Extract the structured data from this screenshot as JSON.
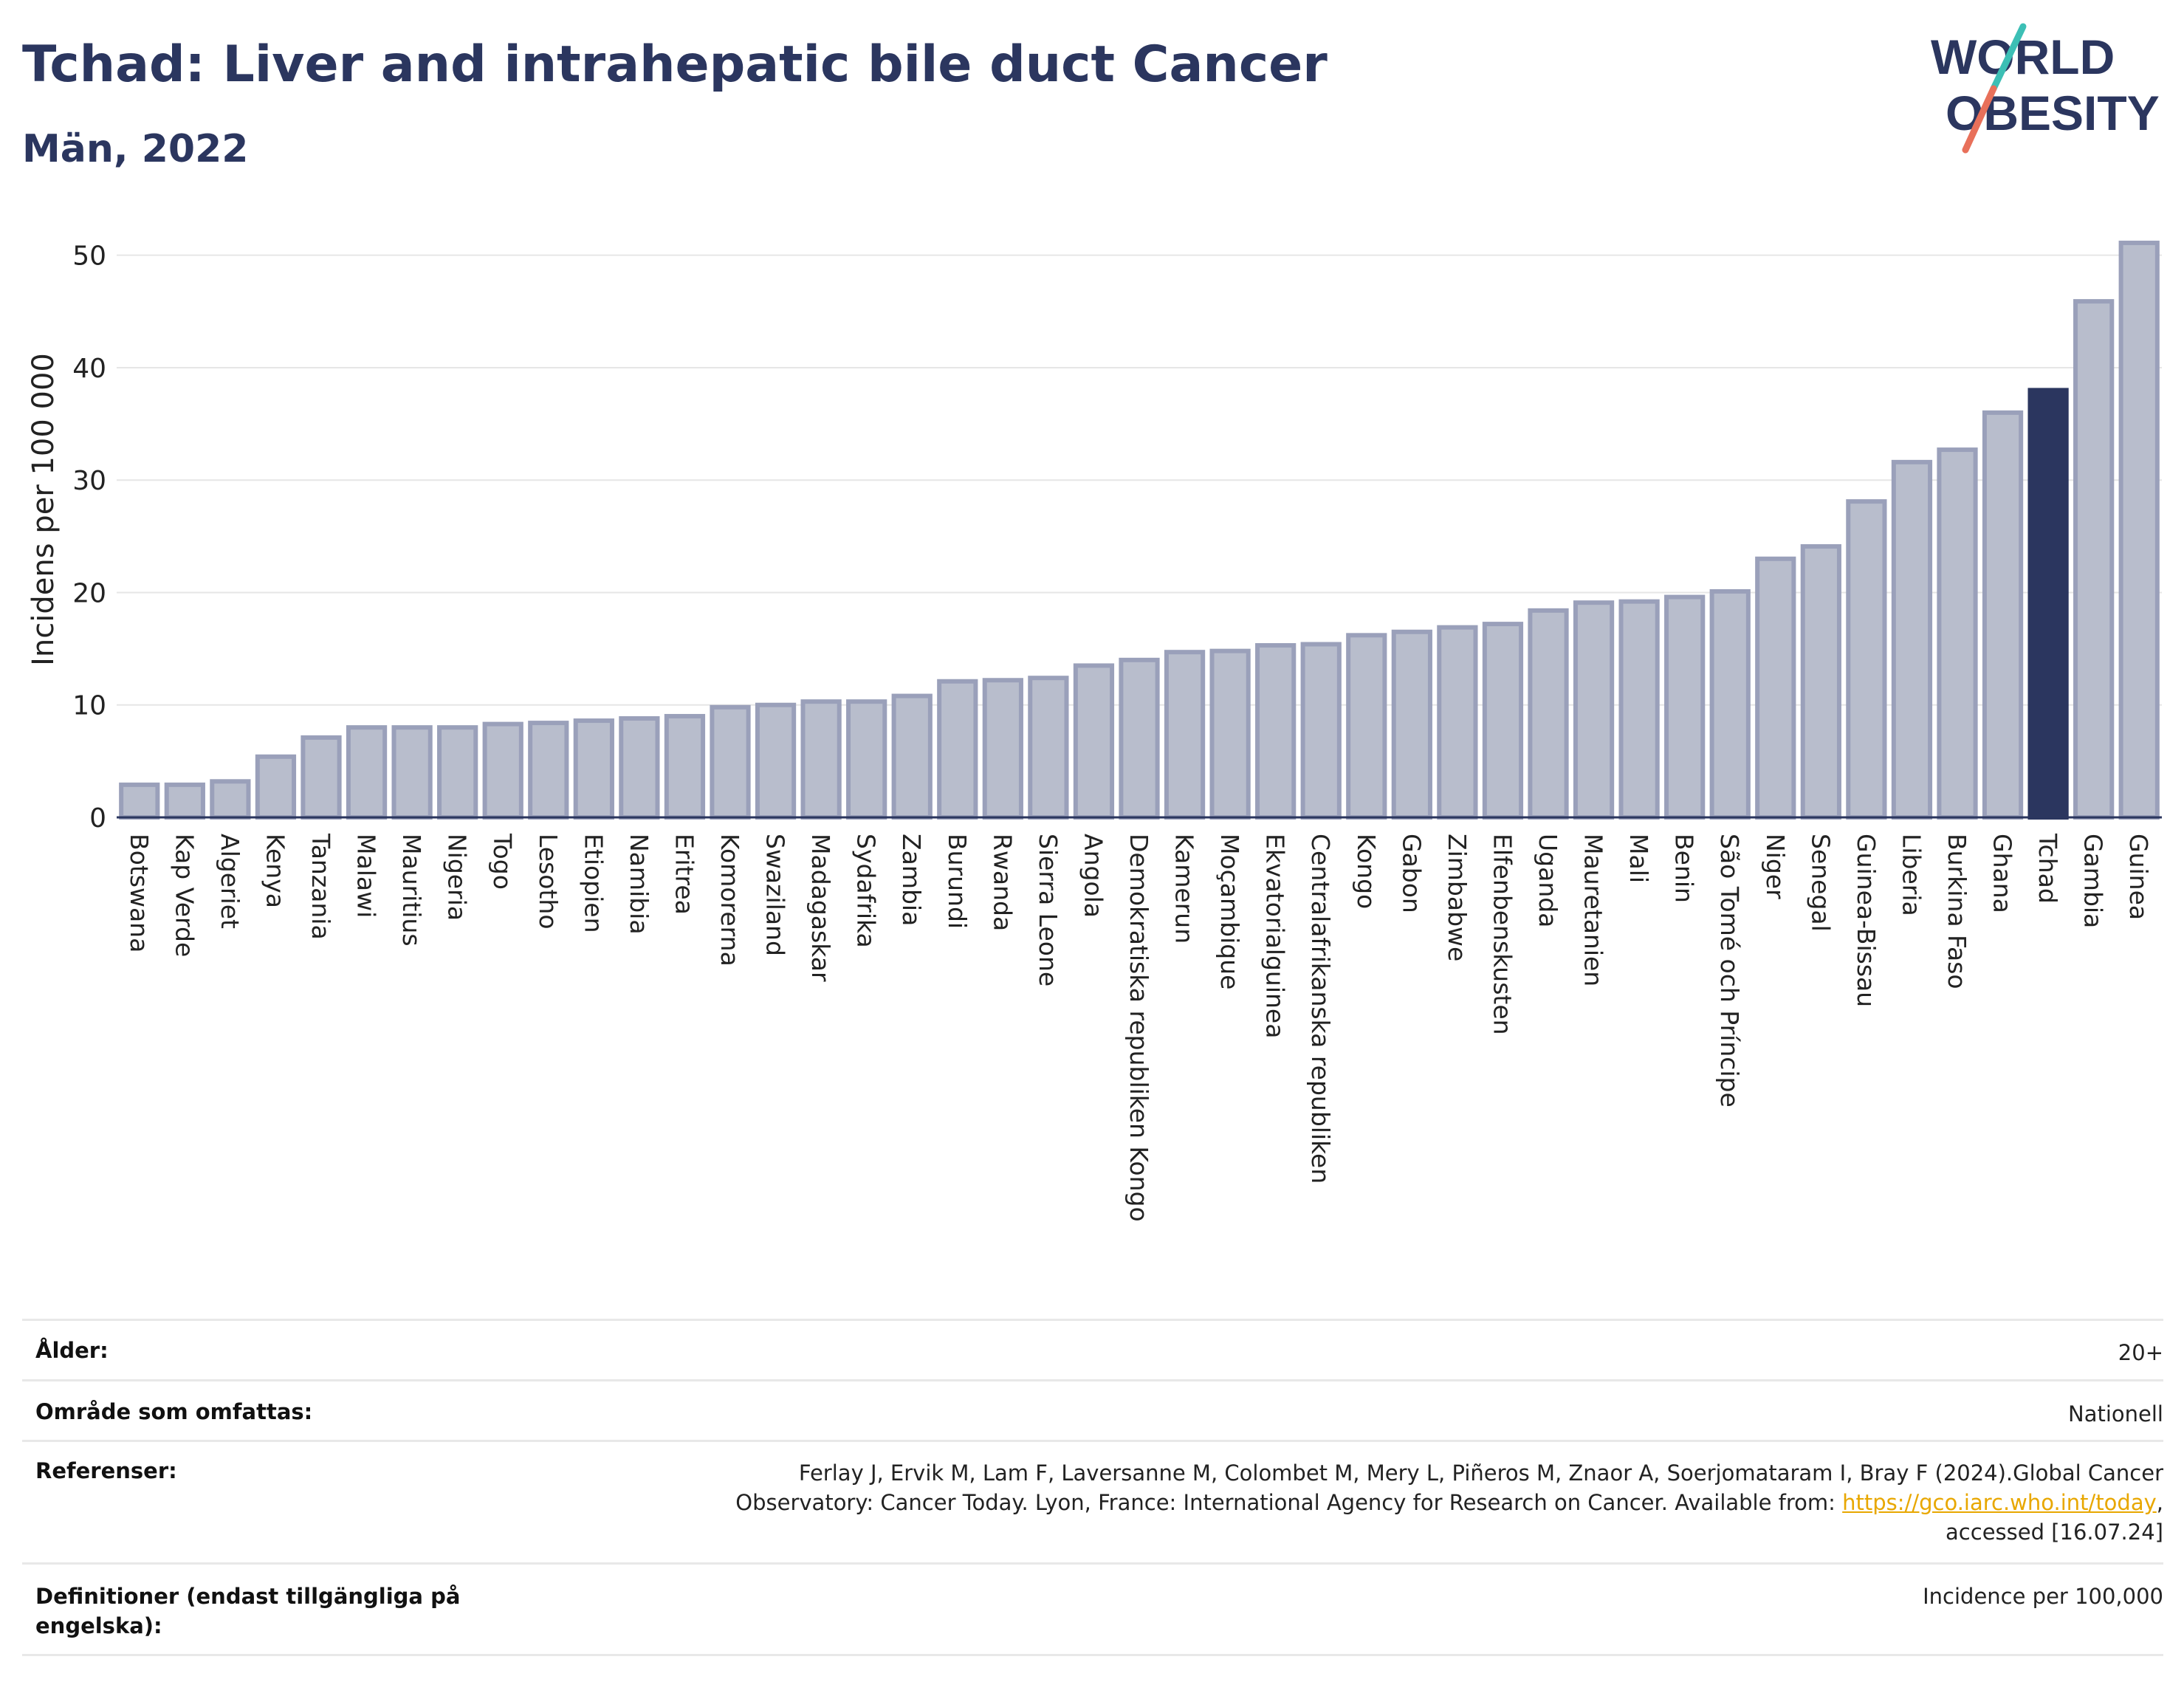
{
  "header": {
    "title": "Tchad: Liver and intrahepatic bile duct Cancer",
    "subtitle": "Män, 2022",
    "logo_line1": "WORLD",
    "logo_line2": "OBESITY"
  },
  "colors": {
    "title": "#2b365f",
    "bar_default_fill": "#b8bdcc",
    "bar_default_stroke": "#9aa0ba",
    "bar_highlight": "#2b365f",
    "logo_slash_top": "#3cbfb5",
    "logo_slash_bottom": "#e8705a"
  },
  "chart_data": {
    "type": "bar",
    "title": "Tchad: Liver and intrahepatic bile duct Cancer",
    "subtitle": "Män, 2022",
    "ylabel": "Incidens per 100 000",
    "xlabel": "",
    "ylim": [
      0,
      53
    ],
    "yticks": [
      0,
      10,
      20,
      30,
      40,
      50
    ],
    "grid": true,
    "highlight": "Tchad",
    "categories": [
      "Botswana",
      "Kap Verde",
      "Algeriet",
      "Kenya",
      "Tanzania",
      "Malawi",
      "Mauritius",
      "Nigeria",
      "Togo",
      "Lesotho",
      "Etiopien",
      "Namibia",
      "Eritrea",
      "Komorerna",
      "Swaziland",
      "Madagaskar",
      "Sydafrika",
      "Zambia",
      "Burundi",
      "Rwanda",
      "Sierra Leone",
      "Angola",
      "Demokratiska republiken Kongo",
      "Kamerun",
      "Moçambique",
      "Ekvatorialguinea",
      "Centralafrikanska republiken",
      "Kongo",
      "Gabon",
      "Zimbabwe",
      "Elfenbenskusten",
      "Uganda",
      "Mauretanien",
      "Mali",
      "Benin",
      "São Tomé och Príncipe",
      "Niger",
      "Senegal",
      "Guinea-Bissau",
      "Liberia",
      "Burkina Faso",
      "Ghana",
      "Tchad",
      "Gambia",
      "Guinea"
    ],
    "values": [
      2.9,
      2.9,
      3.2,
      5.4,
      7.1,
      8.0,
      8.0,
      8.0,
      8.3,
      8.4,
      8.6,
      8.8,
      9.0,
      9.8,
      10.0,
      10.3,
      10.3,
      10.8,
      12.1,
      12.2,
      12.4,
      13.5,
      14.0,
      14.7,
      14.8,
      15.3,
      15.4,
      16.2,
      16.5,
      16.9,
      17.2,
      18.4,
      19.1,
      19.2,
      19.6,
      20.1,
      23.0,
      24.1,
      28.1,
      31.6,
      32.7,
      36.0,
      38.0,
      45.9,
      51.1
    ]
  },
  "meta": {
    "age_label": "Ålder:",
    "age_value": "20+",
    "area_label": "Område som omfattas:",
    "area_value": "Nationell",
    "ref_label": "Referenser:",
    "ref_line1": "Ferlay J, Ervik M, Lam F, Laversanne M, Colombet M, Mery L, Piñeros M, Znaor A, Soerjomataram I, Bray F (2024).Global Cancer",
    "ref_line2_text": "Observatory: Cancer Today. Lyon, France: International Agency for Research on Cancer. Available from: ",
    "ref_link": "https://gco.iarc.who.int/today",
    "ref_line2_end": ",",
    "ref_line3": "accessed [16.07.24]",
    "def_label_line1": "Definitioner (endast tillgängliga på",
    "def_label_line2": "engelska):",
    "def_value": "Incidence per 100,000"
  }
}
